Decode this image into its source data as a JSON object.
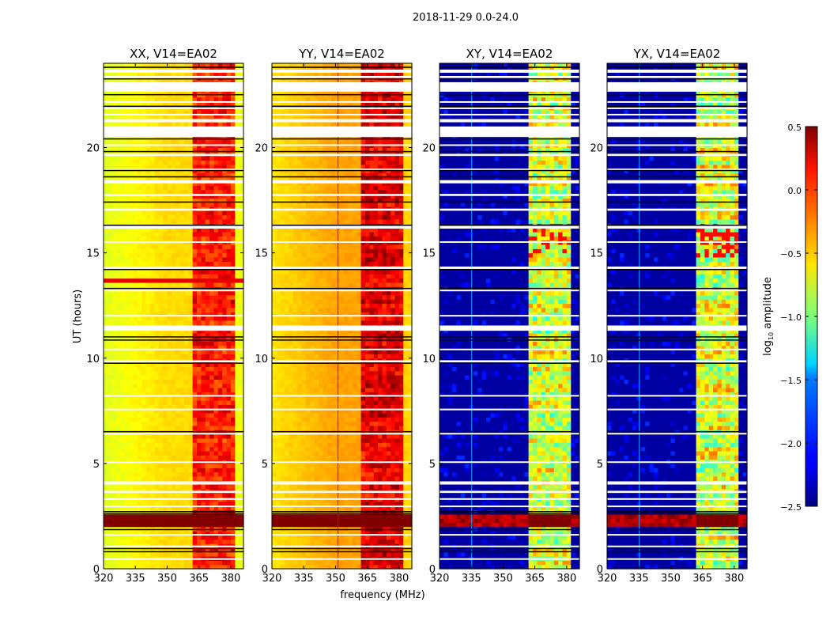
{
  "chart_data": {
    "type": "heatmap",
    "title": "2018-11-29 0.0-24.0",
    "xlabel": "frequency (MHz)",
    "ylabel": "UT (hours)",
    "xlim": [
      320,
      386
    ],
    "ylim": [
      0,
      24
    ],
    "xticks": [
      "320",
      "335",
      "350",
      "365",
      "380"
    ],
    "xtick_values": [
      320,
      335,
      350,
      365,
      380
    ],
    "yticks": [
      "0",
      "5",
      "10",
      "15",
      "20"
    ],
    "ytick_values": [
      0,
      5,
      10,
      15,
      20
    ],
    "colorbar": {
      "label_main": "log",
      "label_sub": "10",
      "label_rest": " amplitude",
      "range": [
        -2.5,
        0.5
      ],
      "ticks": [
        "0.5",
        "0.0",
        "−0.5",
        "−1.0",
        "−1.5",
        "−2.0",
        "−2.5"
      ],
      "tick_values": [
        0.5,
        0.0,
        -0.5,
        -1.0,
        -1.5,
        -2.0,
        -2.5
      ],
      "colormap": "jet"
    },
    "panels": [
      {
        "title": "XX, V14=EA02",
        "kind": "parallel",
        "base": -0.72,
        "band_level": 0.05,
        "gap_level": -0.35,
        "rfi_line_mhz": null,
        "rfi_hour": 13.5
      },
      {
        "title": "YY, V14=EA02",
        "kind": "parallel",
        "base": -0.55,
        "band_level": 0.2,
        "gap_level": -0.2,
        "rfi_line_mhz": 351,
        "rfi_hour": null
      },
      {
        "title": "XY, V14=EA02",
        "kind": "cross",
        "base": -2.4,
        "band_level": -0.75,
        "gap_level": -2.2,
        "rfi_line_mhz": 335,
        "rfi_hour": null
      },
      {
        "title": "YX, V14=EA02",
        "kind": "cross",
        "base": -2.4,
        "band_level": -0.75,
        "gap_level": -2.2,
        "rfi_line_mhz": 335,
        "rfi_hour": null
      }
    ],
    "bands_mhz": [
      [
        362,
        366
      ],
      [
        367,
        371
      ],
      [
        372,
        376
      ],
      [
        377,
        381
      ]
    ],
    "saturated_hours": [
      2.0,
      2.5
    ],
    "flagged_hours": [
      [
        23.55,
        23.7
      ],
      [
        23.3,
        23.4
      ],
      [
        22.65,
        23.1
      ],
      [
        22.15,
        22.2
      ],
      [
        21.85,
        21.9
      ],
      [
        21.55,
        21.6
      ],
      [
        21.2,
        21.35
      ],
      [
        20.5,
        21.0
      ],
      [
        20.1,
        20.15
      ],
      [
        19.6,
        19.7
      ],
      [
        18.95,
        19.0
      ],
      [
        18.3,
        18.45
      ],
      [
        17.7,
        17.8
      ],
      [
        17.0,
        17.1
      ],
      [
        16.15,
        16.3
      ],
      [
        15.5,
        15.55
      ],
      [
        14.2,
        14.35
      ],
      [
        13.2,
        13.25
      ],
      [
        12.0,
        12.05
      ],
      [
        11.3,
        11.55
      ],
      [
        10.4,
        10.45
      ],
      [
        9.8,
        9.9
      ],
      [
        8.2,
        8.25
      ],
      [
        7.55,
        7.6
      ],
      [
        6.4,
        6.45
      ],
      [
        5.05,
        5.1
      ],
      [
        4.0,
        4.15
      ],
      [
        3.6,
        3.7
      ],
      [
        3.3,
        3.35
      ],
      [
        2.95,
        3.0
      ],
      [
        1.6,
        1.65
      ],
      [
        1.05,
        1.1
      ],
      [
        0.45,
        0.5
      ]
    ],
    "masked_lines_hours": [
      23.8,
      23.25,
      22.5,
      21.95,
      20.4,
      19.8,
      18.9,
      18.6,
      17.4,
      16.3,
      14.2,
      13.3,
      11.0,
      10.85,
      9.75,
      6.5,
      2.7,
      2.6,
      1.85,
      0.95,
      0.8
    ]
  }
}
